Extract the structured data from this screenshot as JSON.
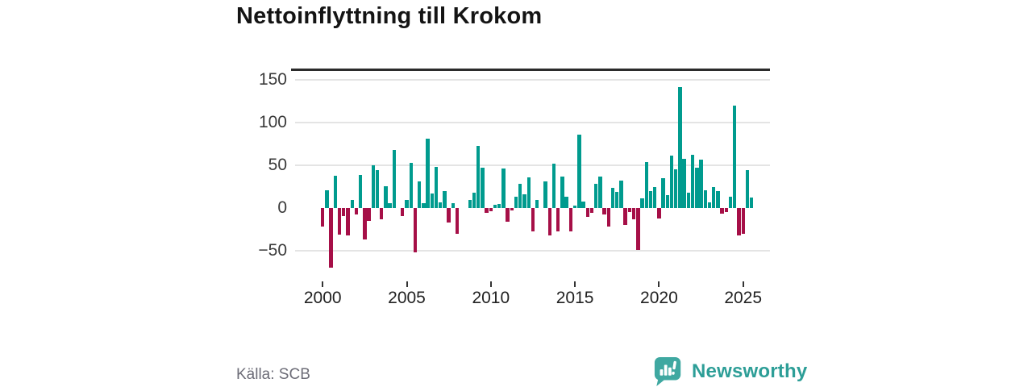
{
  "header": {
    "title": "Nettoinflyttning till Krokom"
  },
  "footer": {
    "source": "Källa: SCB",
    "brand": "Newsworthy"
  },
  "chart_data": {
    "type": "bar",
    "title": "Nettoinflyttning till Krokom",
    "frequency": "quarterly",
    "x_start_year": 2000,
    "x_start_quarter": 1,
    "values": [
      -22,
      21,
      -70,
      38,
      -31,
      -9,
      -32,
      9,
      -8,
      39,
      -37,
      -15,
      50,
      44,
      -13,
      26,
      6,
      68,
      0,
      -9,
      9,
      53,
      -52,
      31,
      6,
      81,
      17,
      48,
      7,
      20,
      -17,
      6,
      -30,
      0,
      0,
      9,
      18,
      73,
      47,
      -6,
      -4,
      4,
      5,
      46,
      -16,
      -3,
      13,
      28,
      16,
      36,
      -27,
      9,
      0,
      31,
      -32,
      52,
      -27,
      37,
      13,
      -27,
      3,
      86,
      8,
      -10,
      -6,
      28,
      37,
      -8,
      -22,
      24,
      19,
      32,
      -20,
      -5,
      -13,
      -49,
      11,
      54,
      20,
      25,
      -12,
      35,
      15,
      61,
      45,
      142,
      58,
      18,
      62,
      47,
      57,
      21,
      7,
      25,
      20,
      -7,
      -5,
      13,
      120,
      -32,
      -30,
      44,
      12
    ],
    "y_ticks": [
      150,
      100,
      50,
      0,
      -50
    ],
    "x_ticks": [
      2000,
      2005,
      2010,
      2015,
      2020,
      2025
    ],
    "ylim": [
      -80,
      164
    ],
    "grid": true,
    "legend": "none",
    "colors": {
      "positive": "#009b8e",
      "negative": "#a60f47",
      "gridline": "#e4e4e4",
      "zero_line": "#2b2b2b",
      "brand_teal": "#2d9e97",
      "logo_teal": "#3fa8a1"
    }
  }
}
